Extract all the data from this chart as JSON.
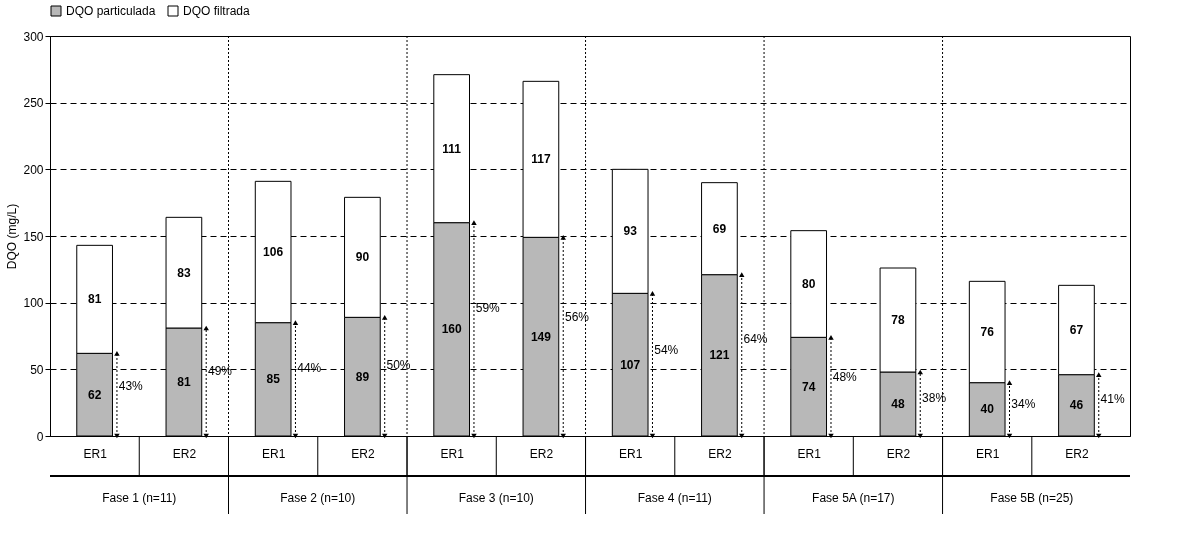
{
  "chart_data": {
    "type": "bar",
    "stacked": true,
    "ylabel": "DQO (mg/L)",
    "categories": [
      "ER1",
      "ER2",
      "ER1",
      "ER2",
      "ER1",
      "ER2",
      "ER1",
      "ER2",
      "ER1",
      "ER2",
      "ER1",
      "ER2"
    ],
    "series": [
      {
        "name": "DQO particulada",
        "color": "#b8b8b8",
        "values": [
          62,
          81,
          85,
          89,
          160,
          149,
          107,
          121,
          74,
          48,
          40,
          46
        ]
      },
      {
        "name": "DQO filtrada",
        "color": "#ffffff",
        "values": [
          81,
          83,
          106,
          90,
          111,
          117,
          93,
          69,
          80,
          78,
          76,
          67
        ]
      }
    ],
    "ylim": [
      0,
      300
    ],
    "yticks": [
      0,
      50,
      100,
      150,
      200,
      250,
      300
    ],
    "grid": "y",
    "legend": "top",
    "data_labels": true,
    "annotations": [
      "43%",
      "49%",
      "44%",
      "50%",
      "59%",
      "56%",
      "54%",
      "64%",
      "48%",
      "38%",
      "34%",
      "41%",
      "Fase 1 (n=11)",
      "Fase 2 (n=10)",
      "Fase 3 (n=10)",
      "Fase 4 (n=11)",
      "Fase 5A (n=17)",
      "Fase 5B (n=25)"
    ]
  }
}
